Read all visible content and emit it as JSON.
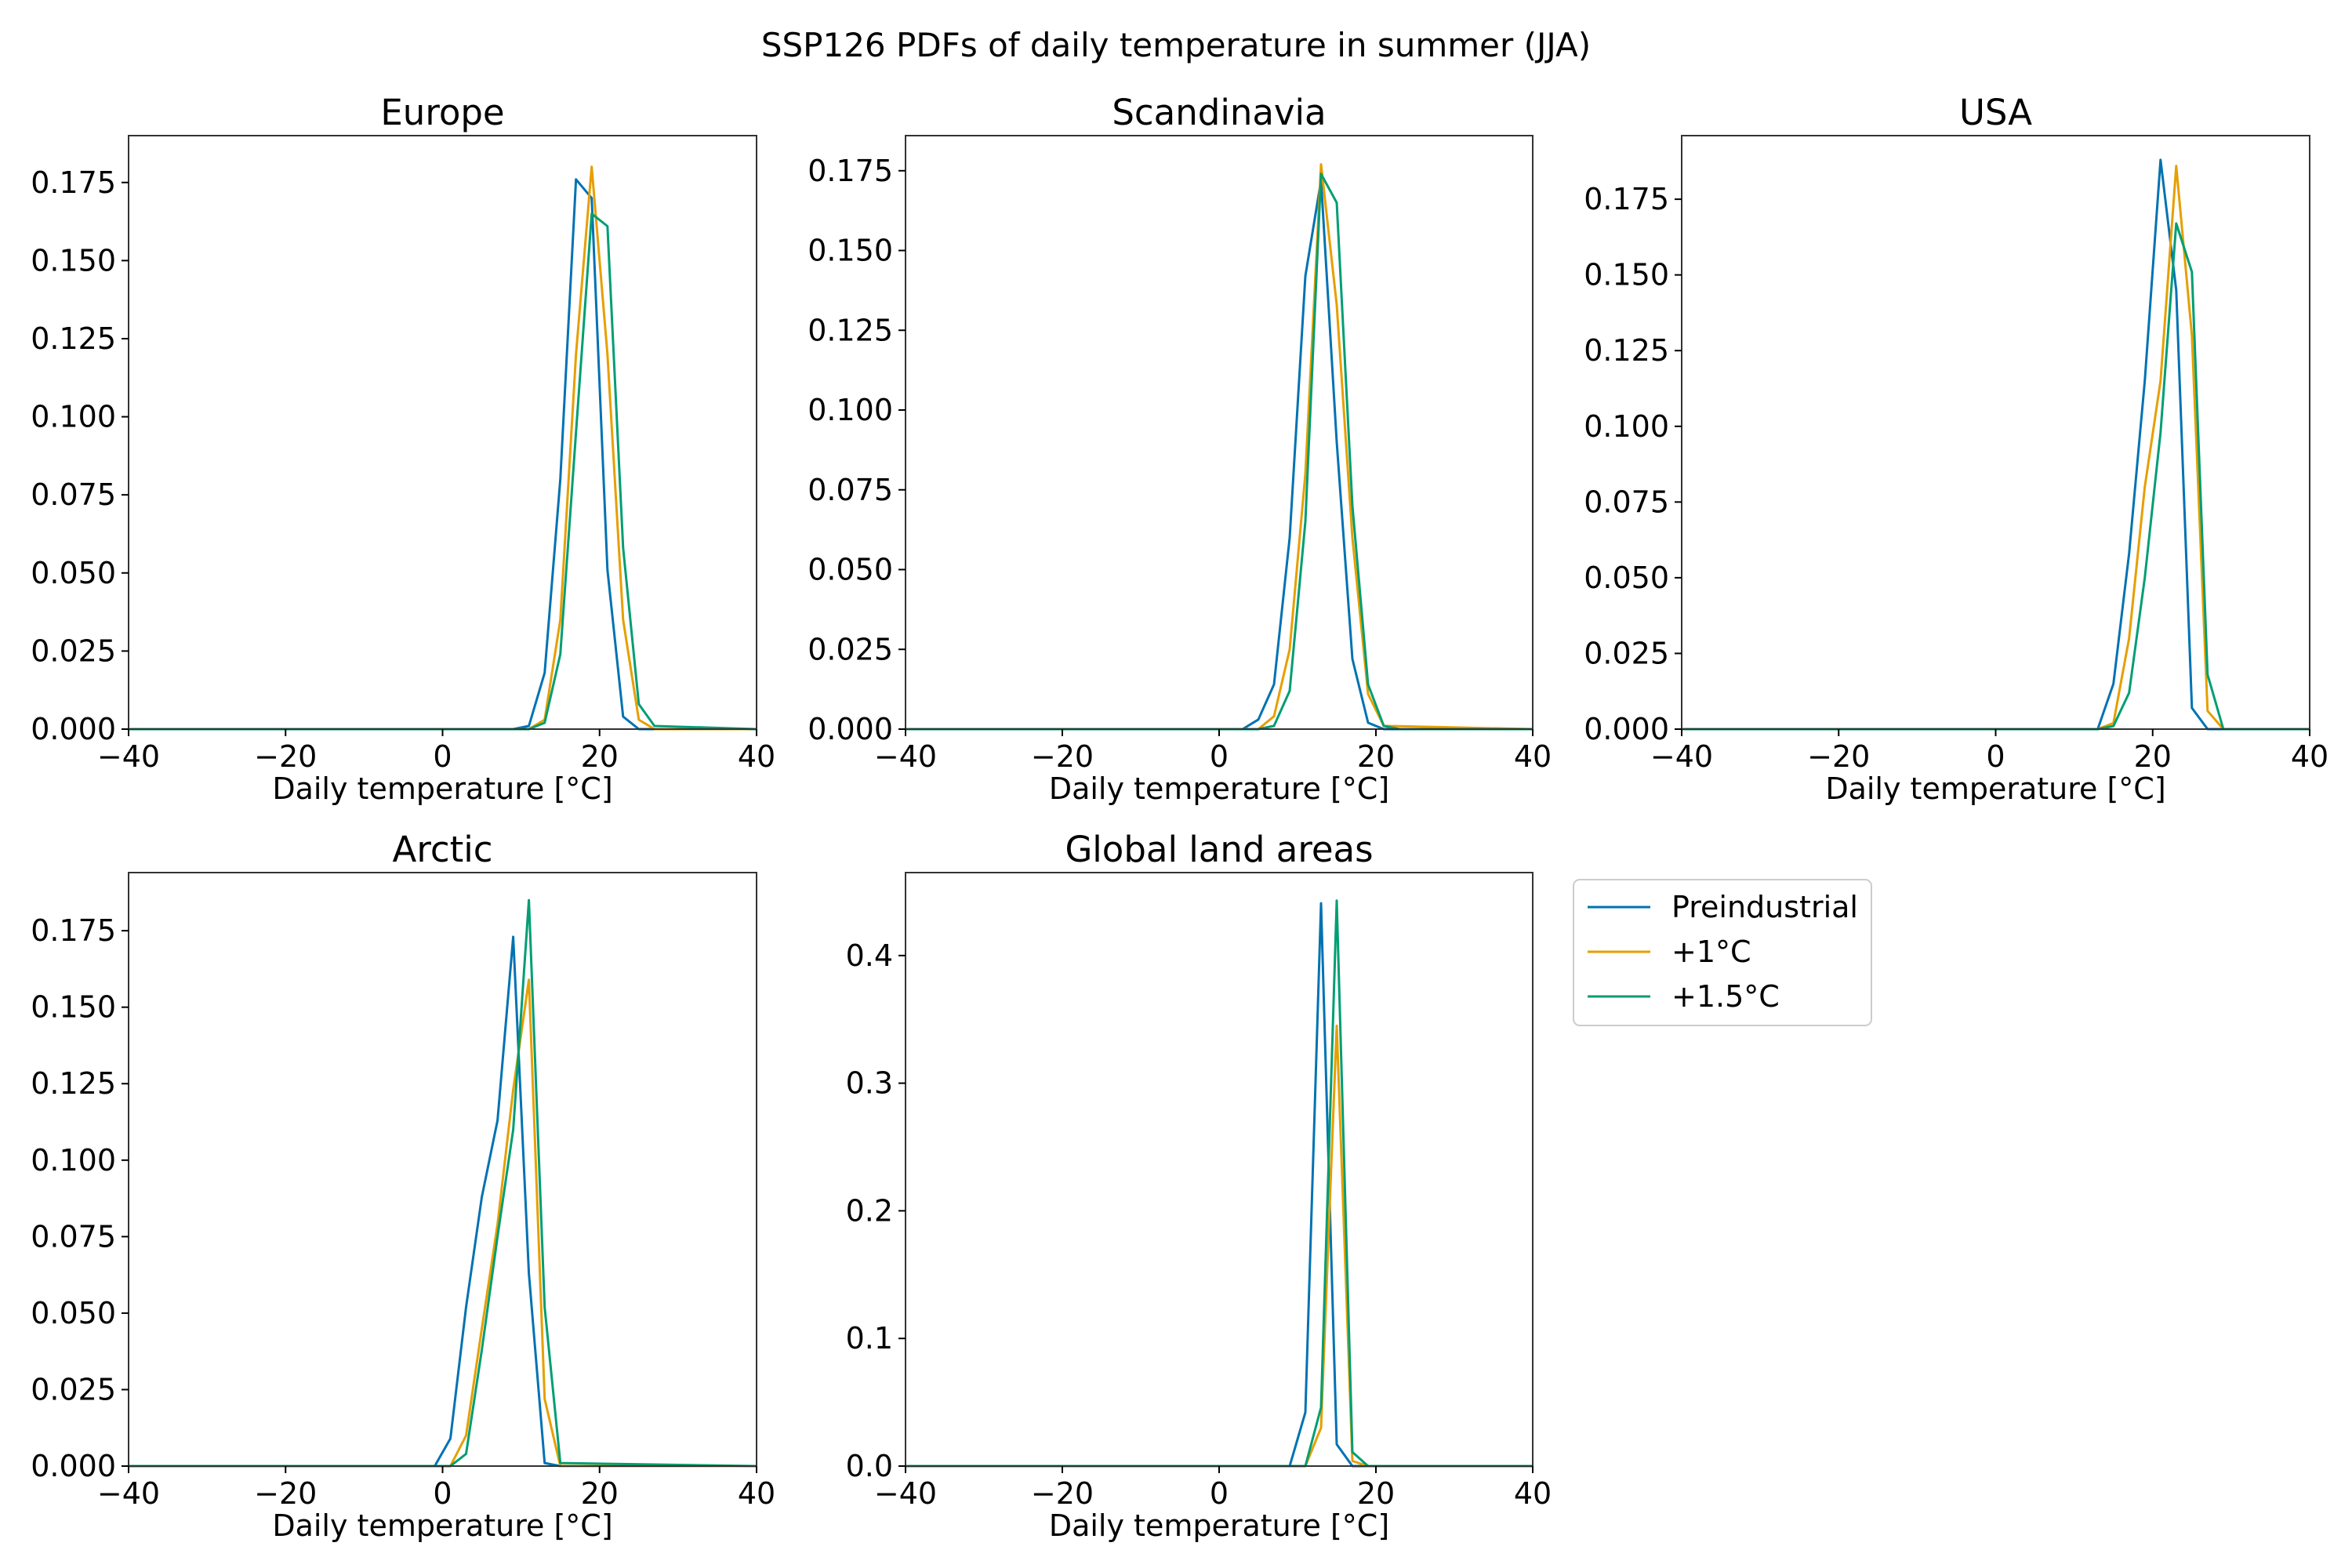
{
  "figure": {
    "title": "SSP126 PDFs of daily temperature in summer (JJA)"
  },
  "legend": {
    "placement": "right of bottom-middle panel",
    "entries": [
      {
        "label": "Preindustrial",
        "color": "#0072b2"
      },
      {
        "label": "+1°C",
        "color": "#e69f00"
      },
      {
        "label": "+1.5°C",
        "color": "#009e73"
      }
    ]
  },
  "chart_data": [
    {
      "type": "line",
      "title": "Europe",
      "xlabel": "Daily temperature [°C]",
      "ylabel": "",
      "xlim": [
        -40,
        40
      ],
      "ylim": [
        0,
        0.19
      ],
      "xticks": [
        -40,
        -20,
        0,
        20,
        40
      ],
      "xtick_labels": [
        "−40",
        "−20",
        "0",
        "20",
        "40"
      ],
      "yticks": [
        0,
        0.025,
        0.05,
        0.075,
        0.1,
        0.125,
        0.15,
        0.175
      ],
      "ytick_labels": [
        "0.000",
        "0.025",
        "0.050",
        "0.075",
        "0.100",
        "0.125",
        "0.150",
        "0.175"
      ],
      "grid": false,
      "series": [
        {
          "name": "Preindustrial",
          "color": "#0072b2",
          "x": [
            -40,
            9,
            11,
            13,
            15,
            17,
            19,
            21,
            23,
            25,
            27,
            40
          ],
          "y": [
            0,
            0,
            0.001,
            0.018,
            0.08,
            0.176,
            0.17,
            0.051,
            0.004,
            0,
            0,
            0
          ]
        },
        {
          "name": "+1°C",
          "color": "#e69f00",
          "x": [
            -40,
            11,
            13,
            15,
            17,
            19,
            21,
            23,
            25,
            27,
            40
          ],
          "y": [
            0,
            0,
            0.003,
            0.035,
            0.12,
            0.18,
            0.12,
            0.035,
            0.003,
            0,
            0
          ]
        },
        {
          "name": "+1.5°C",
          "color": "#009e73",
          "x": [
            -40,
            11,
            13,
            15,
            17,
            19,
            21,
            23,
            25,
            27,
            40
          ],
          "y": [
            0,
            0,
            0.002,
            0.024,
            0.095,
            0.165,
            0.161,
            0.058,
            0.008,
            0.001,
            0
          ]
        }
      ]
    },
    {
      "type": "line",
      "title": "Scandinavia",
      "xlabel": "Daily temperature [°C]",
      "ylabel": "",
      "xlim": [
        -40,
        40
      ],
      "ylim": [
        0,
        0.186
      ],
      "xticks": [
        -40,
        -20,
        0,
        20,
        40
      ],
      "xtick_labels": [
        "−40",
        "−20",
        "0",
        "20",
        "40"
      ],
      "yticks": [
        0,
        0.025,
        0.05,
        0.075,
        0.1,
        0.125,
        0.15,
        0.175
      ],
      "ytick_labels": [
        "0.000",
        "0.025",
        "0.050",
        "0.075",
        "0.100",
        "0.125",
        "0.150",
        "0.175"
      ],
      "grid": false,
      "series": [
        {
          "name": "Preindustrial",
          "color": "#0072b2",
          "x": [
            -40,
            3,
            5,
            7,
            9,
            11,
            13,
            15,
            17,
            19,
            21,
            40
          ],
          "y": [
            0,
            0,
            0.003,
            0.014,
            0.06,
            0.142,
            0.172,
            0.09,
            0.022,
            0.002,
            0,
            0
          ]
        },
        {
          "name": "+1°C",
          "color": "#e69f00",
          "x": [
            -40,
            5,
            7,
            9,
            11,
            13,
            15,
            17,
            19,
            21,
            40
          ],
          "y": [
            0,
            0,
            0.004,
            0.025,
            0.08,
            0.177,
            0.133,
            0.06,
            0.011,
            0.001,
            0
          ]
        },
        {
          "name": "+1.5°C",
          "color": "#009e73",
          "x": [
            -40,
            5,
            7,
            9,
            11,
            13,
            15,
            17,
            19,
            21,
            23,
            40
          ],
          "y": [
            0,
            0,
            0.001,
            0.012,
            0.065,
            0.174,
            0.165,
            0.07,
            0.014,
            0.001,
            0,
            0
          ]
        }
      ]
    },
    {
      "type": "line",
      "title": "USA",
      "xlabel": "Daily temperature [°C]",
      "ylabel": "",
      "xlim": [
        -40,
        40
      ],
      "ylim": [
        0,
        0.196
      ],
      "xticks": [
        -40,
        -20,
        0,
        20,
        40
      ],
      "xtick_labels": [
        "−40",
        "−20",
        "0",
        "20",
        "40"
      ],
      "yticks": [
        0,
        0.025,
        0.05,
        0.075,
        0.1,
        0.125,
        0.15,
        0.175
      ],
      "ytick_labels": [
        "0.000",
        "0.025",
        "0.050",
        "0.075",
        "0.100",
        "0.125",
        "0.150",
        "0.175"
      ],
      "grid": false,
      "series": [
        {
          "name": "Preindustrial",
          "color": "#0072b2",
          "x": [
            -40,
            13,
            15,
            17,
            19,
            21,
            23,
            25,
            27,
            40
          ],
          "y": [
            0,
            0,
            0.015,
            0.058,
            0.115,
            0.188,
            0.145,
            0.007,
            0,
            0
          ]
        },
        {
          "name": "+1°C",
          "color": "#e69f00",
          "x": [
            -40,
            13,
            15,
            17,
            19,
            21,
            23,
            25,
            27,
            29,
            40
          ],
          "y": [
            0,
            0,
            0.002,
            0.03,
            0.08,
            0.115,
            0.186,
            0.13,
            0.006,
            0,
            0
          ]
        },
        {
          "name": "+1.5°C",
          "color": "#009e73",
          "x": [
            -40,
            13,
            15,
            17,
            19,
            21,
            23,
            25,
            27,
            29,
            40
          ],
          "y": [
            0,
            0,
            0.001,
            0.012,
            0.05,
            0.098,
            0.167,
            0.151,
            0.018,
            0,
            0
          ]
        }
      ]
    },
    {
      "type": "line",
      "title": "Arctic",
      "xlabel": "Daily temperature [°C]",
      "ylabel": "",
      "xlim": [
        -40,
        40
      ],
      "ylim": [
        0,
        0.194
      ],
      "xticks": [
        -40,
        -20,
        0,
        20,
        40
      ],
      "xtick_labels": [
        "−40",
        "−20",
        "0",
        "20",
        "40"
      ],
      "yticks": [
        0,
        0.025,
        0.05,
        0.075,
        0.1,
        0.125,
        0.15,
        0.175
      ],
      "ytick_labels": [
        "0.000",
        "0.025",
        "0.050",
        "0.075",
        "0.100",
        "0.125",
        "0.150",
        "0.175"
      ],
      "grid": false,
      "series": [
        {
          "name": "Preindustrial",
          "color": "#0072b2",
          "x": [
            -40,
            -1,
            1,
            3,
            5,
            7,
            9,
            11,
            13,
            15,
            40
          ],
          "y": [
            0,
            0,
            0.009,
            0.052,
            0.088,
            0.113,
            0.173,
            0.063,
            0.001,
            0,
            0
          ]
        },
        {
          "name": "+1°C",
          "color": "#e69f00",
          "x": [
            -40,
            1,
            3,
            5,
            7,
            9,
            11,
            13,
            15,
            40
          ],
          "y": [
            0,
            0,
            0.01,
            0.045,
            0.079,
            0.123,
            0.159,
            0.022,
            0,
            0
          ]
        },
        {
          "name": "+1.5°C",
          "color": "#009e73",
          "x": [
            -40,
            1,
            3,
            5,
            7,
            9,
            11,
            13,
            15,
            40
          ],
          "y": [
            0,
            0,
            0.004,
            0.038,
            0.075,
            0.11,
            0.185,
            0.052,
            0.001,
            0
          ]
        }
      ]
    },
    {
      "type": "line",
      "title": "Global land areas",
      "xlabel": "Daily temperature [°C]",
      "ylabel": "",
      "xlim": [
        -40,
        40
      ],
      "ylim": [
        0,
        0.465
      ],
      "xticks": [
        -40,
        -20,
        0,
        20,
        40
      ],
      "xtick_labels": [
        "−40",
        "−20",
        "0",
        "20",
        "40"
      ],
      "yticks": [
        0,
        0.1,
        0.2,
        0.3,
        0.4
      ],
      "ytick_labels": [
        "0.0",
        "0.1",
        "0.2",
        "0.3",
        "0.4"
      ],
      "grid": false,
      "series": [
        {
          "name": "Preindustrial",
          "color": "#0072b2",
          "x": [
            -40,
            9,
            11,
            13,
            15,
            17,
            40
          ],
          "y": [
            0,
            0,
            0.042,
            0.441,
            0.017,
            0,
            0
          ]
        },
        {
          "name": "+1°C",
          "color": "#e69f00",
          "x": [
            -40,
            11,
            13,
            15,
            17,
            19,
            40
          ],
          "y": [
            0,
            0,
            0.03,
            0.345,
            0.004,
            0,
            0
          ]
        },
        {
          "name": "+1.5°C",
          "color": "#009e73",
          "x": [
            -40,
            11,
            13,
            15,
            17,
            19,
            40
          ],
          "y": [
            0,
            0,
            0.046,
            0.443,
            0.011,
            0,
            0
          ]
        }
      ]
    }
  ]
}
